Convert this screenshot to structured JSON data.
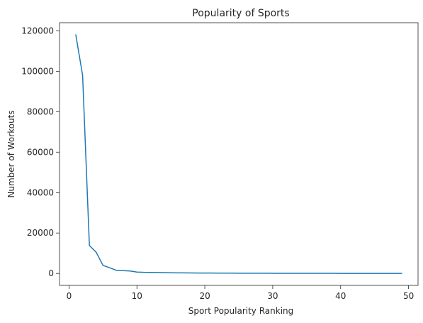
{
  "chart_data": {
    "type": "line",
    "title": "Popularity of Sports",
    "xlabel": "Sport Popularity Ranking",
    "ylabel": "Number of Workouts",
    "xlim": [
      -1.4,
      51.4
    ],
    "ylim": [
      -5900,
      124000
    ],
    "xticks": [
      0,
      10,
      20,
      30,
      40,
      50
    ],
    "yticks": [
      0,
      20000,
      40000,
      60000,
      80000,
      100000,
      120000
    ],
    "grid": false,
    "series": [
      {
        "color": "#1f77b4",
        "x": [
          1,
          2,
          3,
          4,
          5,
          6,
          7,
          8,
          9,
          10,
          11,
          12,
          13,
          14,
          15,
          16,
          17,
          18,
          19,
          20,
          21,
          22,
          23,
          24,
          25,
          26,
          27,
          28,
          29,
          30,
          31,
          32,
          33,
          34,
          35,
          36,
          37,
          38,
          39,
          40,
          41,
          42,
          43,
          44,
          45,
          46,
          47,
          48,
          49
        ],
        "y": [
          118000,
          98000,
          13800,
          10500,
          4000,
          2800,
          1500,
          1400,
          1200,
          700,
          550,
          500,
          450,
          400,
          350,
          300,
          280,
          250,
          220,
          200,
          180,
          160,
          150,
          140,
          130,
          120,
          110,
          100,
          95,
          90,
          85,
          80,
          75,
          70,
          65,
          60,
          55,
          50,
          48,
          45,
          42,
          40,
          38,
          35,
          32,
          30,
          28,
          25,
          22
        ]
      }
    ]
  }
}
